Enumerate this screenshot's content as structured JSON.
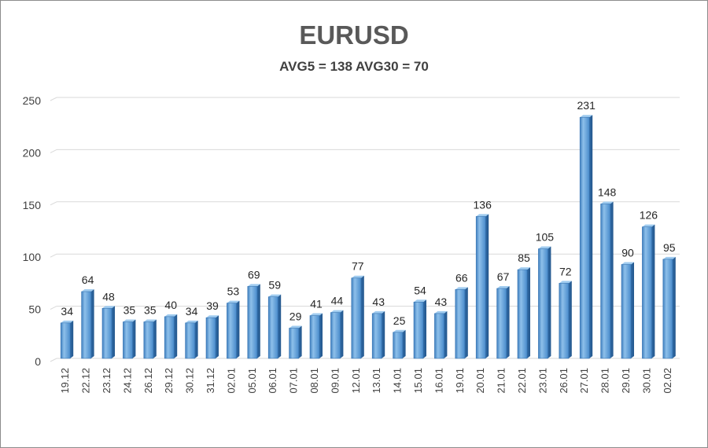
{
  "chart_data": {
    "type": "bar",
    "title": "EURUSD",
    "subtitle": "AVG5 = 138 AVG30 = 70",
    "xlabel": "",
    "ylabel": "",
    "ylim": [
      0,
      250
    ],
    "yticks": [
      0,
      50,
      100,
      150,
      200,
      250
    ],
    "grid": true,
    "legend": "none",
    "bar_color": "#5b9bd5",
    "categories": [
      "19.12",
      "22.12",
      "23.12",
      "24.12",
      "26.12",
      "29.12",
      "30.12",
      "31.12",
      "02.01",
      "05.01",
      "06.01",
      "07.01",
      "08.01",
      "09.01",
      "12.01",
      "13.01",
      "14.01",
      "15.01",
      "16.01",
      "19.01",
      "20.01",
      "21.01",
      "22.01",
      "23.01",
      "26.01",
      "27.01",
      "28.01",
      "29.01",
      "30.01",
      "02.02"
    ],
    "values": [
      34,
      64,
      48,
      35,
      35,
      40,
      34,
      39,
      53,
      69,
      59,
      29,
      41,
      44,
      77,
      43,
      25,
      54,
      43,
      66,
      136,
      67,
      85,
      105,
      72,
      231,
      148,
      90,
      126,
      95
    ]
  }
}
